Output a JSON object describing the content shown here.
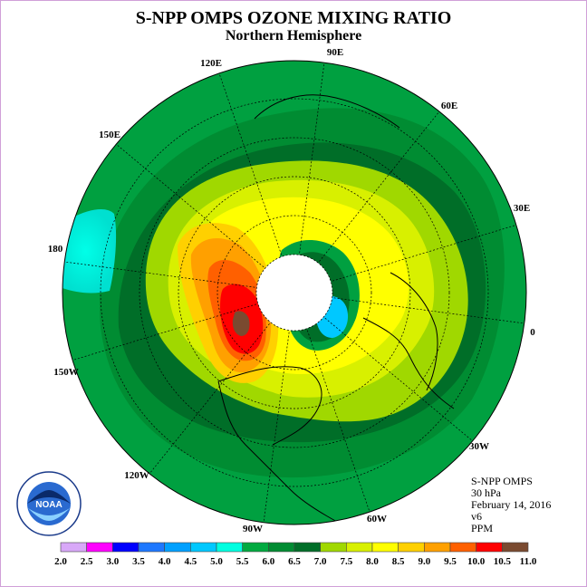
{
  "title": "S-NPP OMPS OZONE MIXING RATIO",
  "subtitle": "Northern Hemisphere",
  "longitude_labels": [
    "90E",
    "60E",
    "30E",
    "0",
    "30W",
    "60W",
    "90W",
    "120W",
    "150W",
    "180",
    "150E",
    "120E"
  ],
  "info": {
    "instrument": "S-NPP OMPS",
    "level": "30 hPa",
    "date": "February 14, 2016",
    "version": "v6",
    "units": "PPM"
  },
  "logo_text": "NOAA",
  "colorbar": {
    "ticks": [
      "2.0",
      "2.5",
      "3.0",
      "3.5",
      "4.0",
      "4.5",
      "5.0",
      "5.5",
      "6.0",
      "6.5",
      "7.0",
      "7.5",
      "8.0",
      "8.5",
      "9.0",
      "9.5",
      "10.0",
      "10.5",
      "11.0"
    ],
    "colors": [
      "#b080f0",
      "#d8a8f8",
      "#ff00ff",
      "#0000ff",
      "#1e78ff",
      "#00a0ff",
      "#00c8ff",
      "#00ffe0",
      "#00aa40",
      "#008c32",
      "#006e28",
      "#a0d800",
      "#d8f000",
      "#ffff00",
      "#ffd000",
      "#ffa000",
      "#ff6000",
      "#ff0000",
      "#7a4a30"
    ]
  }
}
